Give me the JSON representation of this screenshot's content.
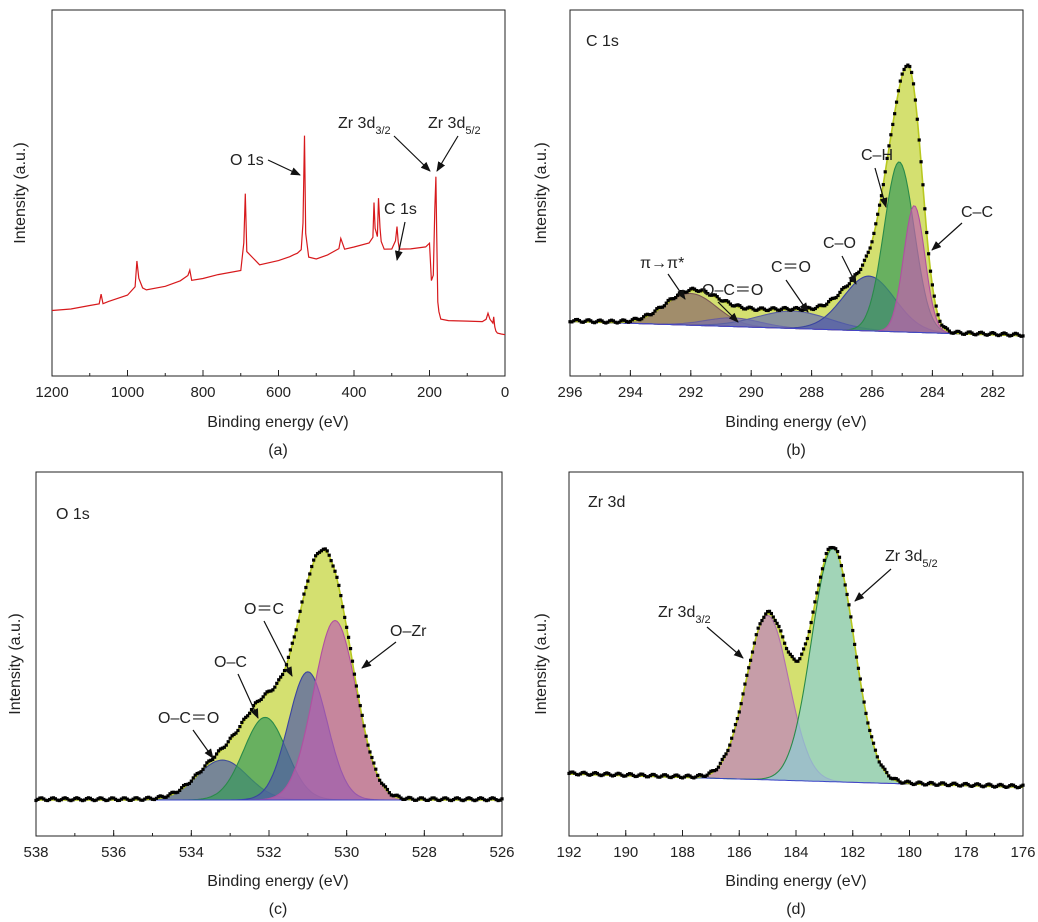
{
  "chart_data": [
    {
      "panel": "a",
      "type": "line",
      "caption": "(a)",
      "xlabel": "Binding energy (eV)",
      "ylabel": "Intensity (a.u.)",
      "xlim": [
        1200,
        0
      ],
      "x_reversed": true,
      "xticks": [
        1200,
        1000,
        800,
        600,
        400,
        200,
        0
      ],
      "y_ticks_shown": false,
      "colors": {
        "line": "#d7191c"
      },
      "series": [
        {
          "x": [
            1200,
            1150,
            1100,
            1075,
            1070,
            1065,
            1050,
            1000,
            980,
            975,
            970,
            960,
            950,
            900,
            860,
            840,
            835,
            830,
            800,
            760,
            700,
            692,
            688,
            684,
            650,
            600,
            570,
            560,
            550,
            540,
            535,
            531,
            528,
            520,
            500,
            470,
            440,
            435,
            430,
            425,
            400,
            360,
            350,
            347,
            344,
            338,
            335,
            331,
            328,
            320,
            300,
            290,
            286,
            283,
            280,
            250,
            210,
            200,
            195,
            190,
            186,
            183,
            181,
            178,
            175,
            170,
            150,
            100,
            60,
            50,
            45,
            40,
            38,
            35,
            32,
            30,
            27,
            24,
            20,
            10,
            0
          ],
          "y": [
            0.1,
            0.11,
            0.13,
            0.14,
            0.19,
            0.14,
            0.15,
            0.18,
            0.22,
            0.35,
            0.26,
            0.21,
            0.2,
            0.22,
            0.25,
            0.28,
            0.31,
            0.26,
            0.27,
            0.29,
            0.31,
            0.45,
            0.7,
            0.4,
            0.33,
            0.35,
            0.37,
            0.38,
            0.39,
            0.41,
            0.55,
            1.0,
            0.5,
            0.38,
            0.37,
            0.39,
            0.42,
            0.47,
            0.44,
            0.41,
            0.42,
            0.44,
            0.47,
            0.65,
            0.52,
            0.48,
            0.68,
            0.53,
            0.46,
            0.42,
            0.42,
            0.46,
            0.53,
            0.45,
            0.41,
            0.41,
            0.42,
            0.44,
            0.25,
            0.28,
            0.62,
            0.79,
            0.5,
            0.15,
            0.1,
            0.06,
            0.05,
            0.045,
            0.04,
            0.05,
            0.08,
            0.05,
            0.045,
            0.04,
            0.035,
            0.07,
            0.02,
            0.0,
            -0.01,
            -0.015,
            -0.02
          ]
        }
      ],
      "annotations": [
        "O 1s",
        "C 1s",
        "Zr 3d3/2",
        "Zr 3d5/2"
      ]
    },
    {
      "panel": "b",
      "type": "area",
      "title": "C 1s",
      "caption": "(b)",
      "xlabel": "Binding energy (eV)",
      "ylabel": "Intensity (a.u.)",
      "xlim": [
        296,
        281
      ],
      "x_reversed": true,
      "xticks": [
        296,
        294,
        292,
        290,
        288,
        286,
        284,
        282
      ],
      "y_ticks_shown": false,
      "components": [
        {
          "label": "π→π*",
          "center": 292.0,
          "height": 0.11,
          "width": 0.85,
          "fill": "#8b6a6a",
          "line": "#7a5555"
        },
        {
          "label": "O–C＝O",
          "center": 290.6,
          "height": 0.03,
          "width": 0.9,
          "fill": "#7a6ea8",
          "line": "#6a5f9a"
        },
        {
          "label": "C＝O",
          "center": 288.6,
          "height": 0.06,
          "width": 1.2,
          "fill": "#6a70b0",
          "line": "#5a60a0"
        },
        {
          "label": "C–O",
          "center": 286.1,
          "height": 0.19,
          "width": 0.85,
          "fill": "#4f5aa8",
          "line": "#3a44a0"
        },
        {
          "label": "C–H",
          "center": 285.1,
          "height": 0.59,
          "width": 0.5,
          "fill": "#3a9b5a",
          "line": "#2a8a4a"
        },
        {
          "label": "C–C",
          "center": 284.6,
          "height": 0.44,
          "width": 0.35,
          "fill": "#c060b0",
          "line": "#b050a0"
        }
      ],
      "baseline": {
        "left": 0.03,
        "right": -0.02
      },
      "envelope_color": "#c5d640",
      "data_color": "#000000",
      "annotations": [
        "π→π*",
        "O–C＝O",
        "C＝O",
        "C–O",
        "C–H",
        "C–C"
      ]
    },
    {
      "panel": "c",
      "type": "area",
      "title": "O 1s",
      "caption": "(c)",
      "xlabel": "Binding energy (eV)",
      "ylabel": "Intensity (a.u.)",
      "xlim": [
        538,
        526
      ],
      "x_reversed": true,
      "xticks": [
        538,
        536,
        534,
        532,
        530,
        528,
        526
      ],
      "y_ticks_shown": false,
      "components": [
        {
          "label": "O–C＝O",
          "center": 533.2,
          "height": 0.14,
          "width": 0.65,
          "fill": "#5060a8",
          "line": "#404e98"
        },
        {
          "label": "O–C",
          "center": 532.1,
          "height": 0.29,
          "width": 0.55,
          "fill": "#3a9b5a",
          "line": "#2a8a4a"
        },
        {
          "label": "O＝C",
          "center": 531.0,
          "height": 0.45,
          "width": 0.5,
          "fill": "#4f5aa8",
          "line": "#3a44a0"
        },
        {
          "label": "O–Zr",
          "center": 530.3,
          "height": 0.63,
          "width": 0.55,
          "fill": "#c060b0",
          "line": "#b050a0"
        }
      ],
      "baseline": {
        "left": 0.0,
        "right": 0.0
      },
      "envelope_color": "#c5d640",
      "data_color": "#000000",
      "annotations": [
        "O–C＝O",
        "O–C",
        "O＝C",
        "O–Zr"
      ]
    },
    {
      "panel": "d",
      "type": "area",
      "title": "Zr 3d",
      "caption": "(d)",
      "xlabel": "Binding energy (eV)",
      "ylabel": "Intensity (a.u.)",
      "xlim": [
        192,
        176
      ],
      "x_reversed": true,
      "xticks": [
        192,
        190,
        188,
        186,
        184,
        182,
        180,
        178,
        176
      ],
      "y_ticks_shown": false,
      "components": [
        {
          "label": "Zr 3d3/2",
          "center": 185.0,
          "height": 0.62,
          "width": 0.75,
          "fill": "#c080c0",
          "line": "#b070b0"
        },
        {
          "label": "Zr 3d5/2",
          "center": 182.7,
          "height": 0.88,
          "width": 0.75,
          "fill": "#8ccfd5",
          "line": "#2a8a4a"
        }
      ],
      "baseline": {
        "left": 0.03,
        "right": -0.02
      },
      "envelope_color": "#c5d640",
      "data_color": "#000000",
      "annotations": [
        "Zr 3d3/2",
        "Zr 3d5/2"
      ]
    }
  ]
}
